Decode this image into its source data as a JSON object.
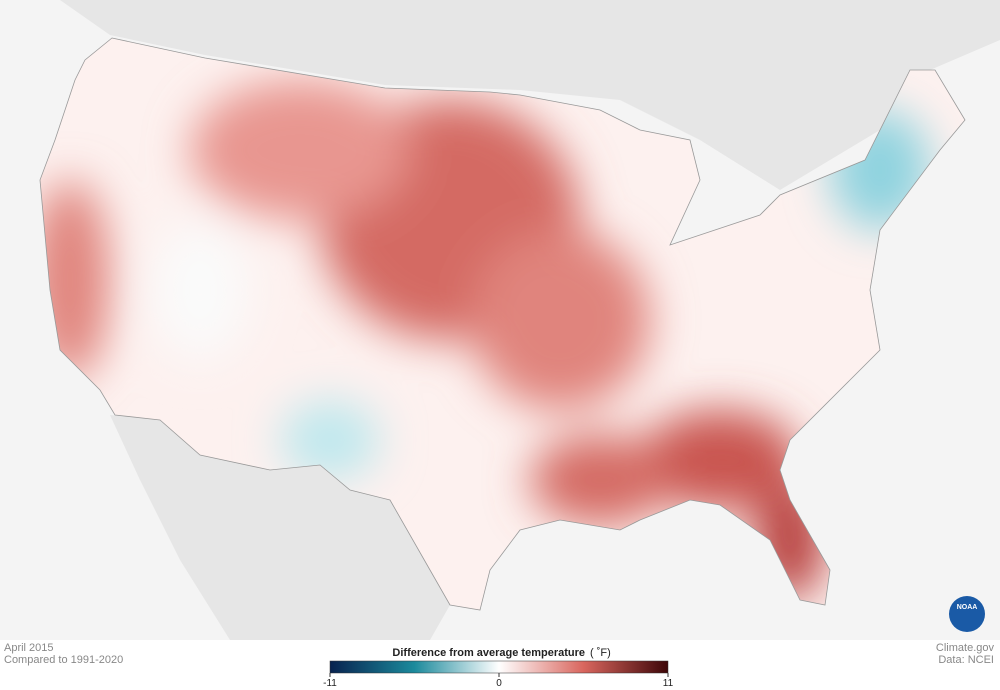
{
  "header": {
    "date": "April 2015",
    "baseline": "Compared to 1991-2020"
  },
  "legend": {
    "title": "Difference from average temperature",
    "unit": "( ˚F)",
    "range": [
      -11,
      11
    ],
    "ticks": [
      -11,
      0,
      11
    ]
  },
  "credits": {
    "site": "Climate.gov",
    "source": "Data: NCEI",
    "logo": "NOAA"
  }
}
